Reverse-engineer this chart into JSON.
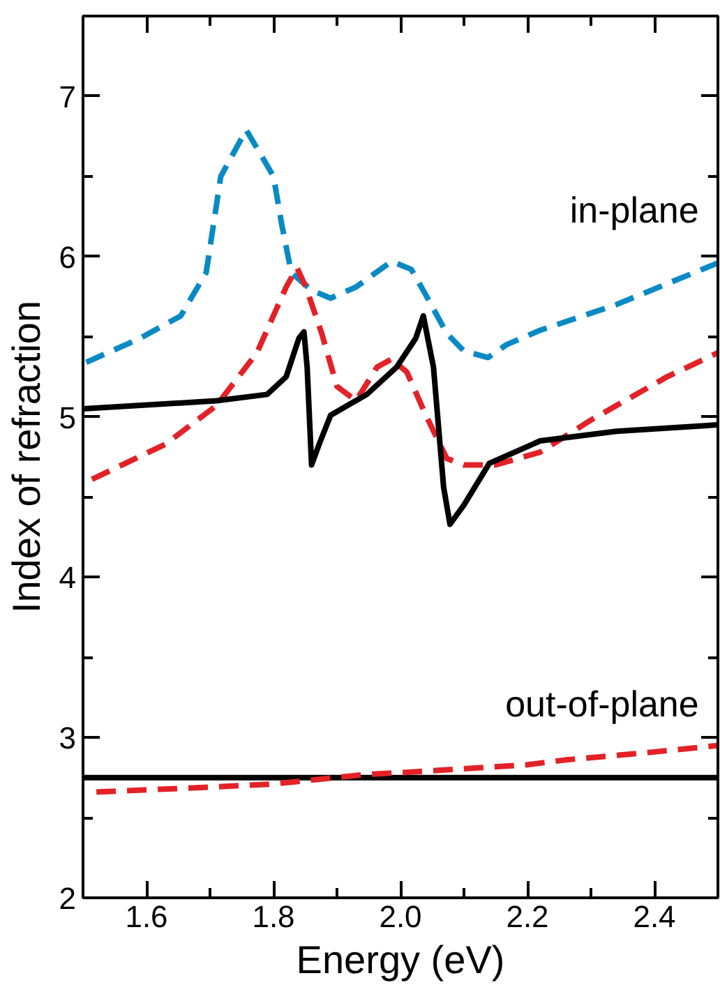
{
  "chart_data": {
    "type": "line",
    "xlabel": "Energy (eV)",
    "ylabel": "Index of refraction",
    "xlim": [
      1.5,
      2.5
    ],
    "ylim": [
      2,
      7.5
    ],
    "xticks": [
      {
        "value": 1.5,
        "label": null
      },
      1.6,
      {
        "value": 1.7,
        "label": null
      },
      1.8,
      {
        "value": 1.9,
        "label": null
      },
      {
        "value": 2,
        "label": "2.0"
      },
      {
        "value": 2.1,
        "label": null
      },
      2.2,
      {
        "value": 2.3,
        "label": null
      },
      2.4,
      {
        "value": 2.5,
        "label": null
      }
    ],
    "yticks": [
      2,
      {
        "value": 2.5,
        "label": null
      },
      3,
      {
        "value": 3.5,
        "label": null
      },
      4,
      {
        "value": 4.5,
        "label": null
      },
      5,
      {
        "value": 5.5,
        "label": null
      },
      6,
      {
        "value": 6.5,
        "label": null
      },
      7
    ],
    "grid": false,
    "annotations": [
      "in-plane",
      "out-of-plane"
    ],
    "series": [
      {
        "color": "#0a8ac4",
        "line_style": "dashed",
        "x": [
          1.505,
          1.59,
          1.654,
          1.694,
          1.717,
          1.757,
          1.8,
          1.813,
          1.828,
          1.86,
          1.89,
          1.93,
          1.986,
          2.017,
          2.04,
          2.073,
          2.1,
          2.138,
          2.167,
          2.22,
          2.34,
          2.5
        ],
        "values": [
          5.34,
          5.49,
          5.63,
          5.9,
          6.5,
          6.79,
          6.5,
          6.2,
          5.9,
          5.79,
          5.74,
          5.81,
          5.97,
          5.92,
          5.76,
          5.52,
          5.41,
          5.37,
          5.45,
          5.54,
          5.7,
          5.96
        ]
      },
      {
        "color": "#e32227",
        "line_style": "dashed",
        "x": [
          1.514,
          1.63,
          1.71,
          1.774,
          1.82,
          1.837,
          1.851,
          1.876,
          1.9,
          1.93,
          1.963,
          1.986,
          2.01,
          2.04,
          2.073,
          2.1,
          2.15,
          2.22,
          2.3,
          2.42,
          2.5
        ],
        "values": [
          4.61,
          4.83,
          5.07,
          5.4,
          5.81,
          5.93,
          5.81,
          5.52,
          5.19,
          5.1,
          5.31,
          5.36,
          5.28,
          5.01,
          4.74,
          4.7,
          4.7,
          4.78,
          4.98,
          5.25,
          5.4
        ]
      },
      {
        "color": "#000000",
        "line_style": "solid",
        "x": [
          1.5,
          1.71,
          1.79,
          1.82,
          1.84,
          1.848,
          1.853,
          1.86,
          1.872,
          1.89,
          1.947,
          1.994,
          2.024,
          2.036,
          2.052,
          2.068,
          2.078,
          2.1,
          2.14,
          2.22,
          2.34,
          2.5
        ],
        "values": [
          5.05,
          5.1,
          5.14,
          5.25,
          5.49,
          5.53,
          5.31,
          4.7,
          4.83,
          5.01,
          5.14,
          5.31,
          5.49,
          5.63,
          5.31,
          4.56,
          4.33,
          4.45,
          4.71,
          4.85,
          4.91,
          4.95
        ]
      },
      {
        "color": "#000000",
        "line_style": "solid",
        "x": [
          1.5,
          2.5
        ],
        "values": [
          2.75,
          2.75
        ]
      },
      {
        "color": "#e32227",
        "line_style": "dashed",
        "x": [
          1.521,
          1.7,
          1.8,
          1.947,
          2.0,
          2.2,
          2.26,
          2.4,
          2.5
        ],
        "values": [
          2.66,
          2.69,
          2.71,
          2.77,
          2.78,
          2.83,
          2.86,
          2.91,
          2.95
        ]
      }
    ]
  }
}
